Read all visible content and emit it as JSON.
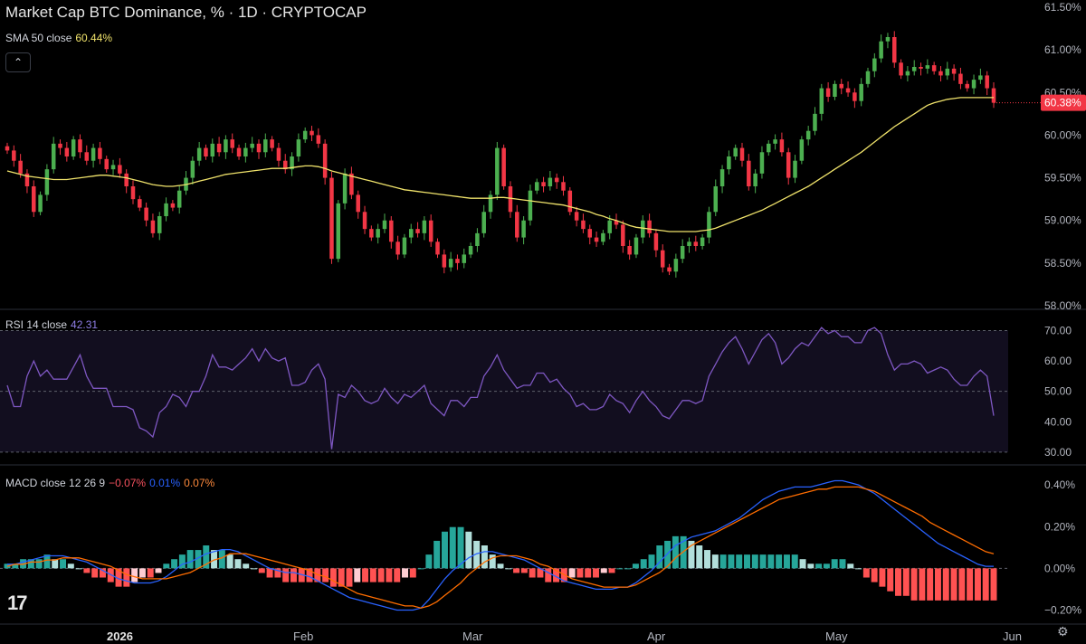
{
  "header": {
    "title": "Market Cap BTC Dominance, % · 1D · CRYPTOCAP",
    "sma_label": "SMA 50 close",
    "sma_value": "60.44%",
    "collapse_icon": "chevron-up-icon"
  },
  "rsi_header": {
    "label": "RSI 14 close",
    "value": "42.31"
  },
  "macd_header": {
    "label": "MACD close 12 26 9",
    "hist": "−0.07%",
    "macd": "0.01%",
    "signal": "0.07%"
  },
  "logo_text": "17",
  "settings_icon": "gear-icon",
  "colors": {
    "up": "#26a69a",
    "down": "#ef5350",
    "up_candle": "#4caf50",
    "down_candle": "#f23645",
    "sma": "#f0e36b",
    "rsi": "#7e57c2",
    "macd": "#2962ff",
    "signal": "#ff6d00",
    "hist_up_strong": "#26a69a",
    "hist_up_weak": "#b2dfdb",
    "hist_down_strong": "#ff5252",
    "hist_down_weak": "#ffcdd2"
  },
  "chart_data": [
    {
      "type": "candlestick",
      "title": "Market Cap BTC Dominance, % · 1D · CRYPTOCAP",
      "ylabel": "%",
      "ylim": [
        58.0,
        61.5
      ],
      "y_ticks": [
        "61.50%",
        "61.00%",
        "60.50%",
        "60.00%",
        "59.50%",
        "59.00%",
        "58.50%",
        "58.00%"
      ],
      "last_price_label": "60.38%",
      "x_ticks": [
        "2026",
        "Feb",
        "Mar",
        "Apr",
        "May",
        "Jun"
      ],
      "close": [
        59.82,
        59.7,
        59.55,
        59.4,
        59.1,
        59.3,
        59.6,
        59.9,
        59.85,
        59.75,
        59.95,
        59.8,
        59.7,
        59.85,
        59.72,
        59.6,
        59.65,
        59.55,
        59.4,
        59.25,
        59.15,
        59.0,
        58.85,
        59.05,
        59.2,
        59.15,
        59.35,
        59.5,
        59.7,
        59.85,
        59.75,
        59.9,
        59.8,
        59.95,
        59.85,
        59.75,
        59.85,
        59.9,
        59.8,
        59.95,
        59.85,
        59.7,
        59.6,
        59.75,
        59.95,
        60.05,
        60.0,
        59.9,
        59.5,
        58.55,
        59.2,
        59.55,
        59.3,
        59.1,
        58.9,
        58.8,
        58.9,
        59.0,
        58.75,
        58.6,
        58.8,
        58.9,
        58.85,
        59.0,
        58.75,
        58.6,
        58.45,
        58.55,
        58.5,
        58.6,
        58.7,
        58.85,
        59.1,
        59.3,
        59.85,
        59.4,
        59.1,
        58.8,
        59.0,
        59.35,
        59.45,
        59.4,
        59.5,
        59.45,
        59.35,
        59.1,
        59.0,
        58.9,
        58.8,
        58.75,
        58.85,
        59.0,
        58.95,
        58.7,
        58.6,
        58.8,
        59.0,
        58.85,
        58.65,
        58.45,
        58.4,
        58.55,
        58.7,
        58.75,
        58.7,
        58.8,
        59.1,
        59.4,
        59.6,
        59.75,
        59.85,
        59.7,
        59.4,
        59.55,
        59.8,
        59.9,
        59.95,
        59.8,
        59.5,
        59.7,
        59.95,
        60.05,
        60.25,
        60.55,
        60.45,
        60.6,
        60.55,
        60.5,
        60.4,
        60.6,
        60.75,
        60.9,
        61.1,
        61.15,
        60.85,
        60.7,
        60.75,
        60.8,
        60.78,
        60.82,
        60.75,
        60.7,
        60.78,
        60.72,
        60.6,
        60.55,
        60.65,
        60.7,
        60.55,
        60.38
      ],
      "sma50": [
        59.58,
        59.56,
        59.54,
        59.52,
        59.51,
        59.5,
        59.49,
        59.48,
        59.48,
        59.48,
        59.49,
        59.5,
        59.51,
        59.52,
        59.53,
        59.53,
        59.52,
        59.51,
        59.5,
        59.48,
        59.46,
        59.44,
        59.42,
        59.41,
        59.4,
        59.4,
        59.41,
        59.42,
        59.44,
        59.46,
        59.48,
        59.5,
        59.52,
        59.54,
        59.55,
        59.56,
        59.57,
        59.58,
        59.59,
        59.6,
        59.61,
        59.61,
        59.61,
        59.62,
        59.63,
        59.64,
        59.64,
        59.63,
        59.61,
        59.58,
        59.56,
        59.54,
        59.52,
        59.5,
        59.48,
        59.46,
        59.44,
        59.42,
        59.4,
        59.38,
        59.36,
        59.35,
        59.34,
        59.33,
        59.32,
        59.31,
        59.3,
        59.29,
        59.28,
        59.27,
        59.26,
        59.26,
        59.26,
        59.26,
        59.27,
        59.27,
        59.26,
        59.25,
        59.24,
        59.23,
        59.22,
        59.21,
        59.2,
        59.19,
        59.18,
        59.16,
        59.14,
        59.12,
        59.1,
        59.07,
        59.05,
        59.02,
        59.0,
        58.97,
        58.94,
        58.92,
        58.91,
        58.9,
        58.89,
        58.88,
        58.87,
        58.87,
        58.87,
        58.87,
        58.87,
        58.88,
        58.89,
        58.91,
        58.94,
        58.97,
        59.0,
        59.03,
        59.06,
        59.09,
        59.12,
        59.16,
        59.2,
        59.24,
        59.28,
        59.32,
        59.36,
        59.4,
        59.45,
        59.5,
        59.55,
        59.6,
        59.65,
        59.7,
        59.75,
        59.8,
        59.86,
        59.92,
        59.98,
        60.04,
        60.1,
        60.15,
        60.2,
        60.25,
        60.3,
        60.35,
        60.38,
        60.4,
        60.42,
        60.43,
        60.44,
        60.44,
        60.44,
        60.44,
        60.44,
        60.44
      ]
    },
    {
      "type": "line",
      "title": "RSI 14 close",
      "ylim": [
        27,
        74
      ],
      "y_ticks": [
        "70.00",
        "60.00",
        "50.00",
        "40.00",
        "30.00"
      ],
      "bands": [
        30,
        50,
        70
      ],
      "values": [
        52,
        45,
        45,
        55,
        60,
        55,
        57,
        54,
        54,
        54,
        58,
        62,
        55,
        51,
        51,
        51,
        45,
        45,
        45,
        44,
        38,
        37,
        35,
        43,
        45,
        49,
        48,
        45,
        50,
        50,
        55,
        62,
        58,
        58,
        57,
        59,
        61,
        64,
        60,
        64,
        61,
        60,
        61,
        52,
        52,
        53,
        57,
        59,
        54,
        31,
        49,
        48,
        52,
        50,
        47,
        46,
        47,
        51,
        48,
        46,
        49,
        48,
        50,
        52,
        46,
        44,
        42,
        47,
        47,
        45,
        48,
        48,
        55,
        58,
        62,
        57,
        54,
        51,
        52,
        52,
        56,
        56,
        53,
        54,
        51,
        49,
        45,
        46,
        44,
        44,
        45,
        49,
        47,
        46,
        43,
        47,
        50,
        47,
        45,
        42,
        41,
        44,
        47,
        47,
        46,
        47,
        55,
        59,
        63,
        66,
        68,
        64,
        59,
        63,
        67,
        69,
        66,
        59,
        61,
        64,
        66,
        65,
        68,
        71,
        69,
        70,
        68,
        68,
        66,
        66,
        70,
        71,
        69,
        62,
        57,
        59,
        59,
        60,
        59,
        56,
        57,
        58,
        57,
        54,
        52,
        52,
        55,
        57,
        55,
        42
      ]
    },
    {
      "type": "bar+line",
      "title": "MACD close 12 26 9",
      "ylim": [
        -0.25,
        0.47
      ],
      "y_ticks": [
        "0.40%",
        "0.20%",
        "0.00%",
        "−0.20%"
      ],
      "macd": [
        0.02,
        0.02,
        0.03,
        0.04,
        0.05,
        0.06,
        0.06,
        0.06,
        0.05,
        0.04,
        0.03,
        0.01,
        -0.01,
        -0.03,
        -0.05,
        -0.06,
        -0.07,
        -0.07,
        -0.07,
        -0.06,
        -0.04,
        -0.01,
        0.02,
        0.03,
        0.05,
        0.07,
        0.08,
        0.09,
        0.09,
        0.08,
        0.06,
        0.04,
        0.02,
        0.0,
        -0.01,
        -0.02,
        -0.02,
        -0.03,
        -0.04,
        -0.06,
        -0.08,
        -0.1,
        -0.12,
        -0.14,
        -0.15,
        -0.16,
        -0.17,
        -0.18,
        -0.19,
        -0.2,
        -0.2,
        -0.2,
        -0.19,
        -0.15,
        -0.1,
        -0.05,
        -0.01,
        0.02,
        0.05,
        0.07,
        0.08,
        0.08,
        0.07,
        0.06,
        0.05,
        0.04,
        0.02,
        0.0,
        -0.02,
        -0.04,
        -0.06,
        -0.07,
        -0.08,
        -0.09,
        -0.1,
        -0.1,
        -0.1,
        -0.09,
        -0.09,
        -0.07,
        -0.04,
        -0.01,
        0.03,
        0.07,
        0.11,
        0.13,
        0.15,
        0.16,
        0.17,
        0.18,
        0.2,
        0.22,
        0.24,
        0.27,
        0.3,
        0.33,
        0.35,
        0.37,
        0.38,
        0.39,
        0.39,
        0.39,
        0.4,
        0.41,
        0.42,
        0.42,
        0.41,
        0.4,
        0.38,
        0.36,
        0.33,
        0.3,
        0.27,
        0.24,
        0.21,
        0.18,
        0.15,
        0.12,
        0.1,
        0.08,
        0.06,
        0.04,
        0.02,
        0.01,
        0.01
      ],
      "signal": [
        0.01,
        0.02,
        0.02,
        0.03,
        0.03,
        0.04,
        0.04,
        0.05,
        0.05,
        0.05,
        0.04,
        0.03,
        0.02,
        0.01,
        -0.01,
        -0.03,
        -0.04,
        -0.05,
        -0.05,
        -0.05,
        -0.05,
        -0.04,
        -0.03,
        -0.02,
        0.0,
        0.02,
        0.04,
        0.05,
        0.07,
        0.07,
        0.07,
        0.06,
        0.05,
        0.04,
        0.03,
        0.02,
        0.01,
        0.0,
        -0.01,
        -0.03,
        -0.04,
        -0.06,
        -0.08,
        -0.1,
        -0.12,
        -0.13,
        -0.14,
        -0.15,
        -0.16,
        -0.17,
        -0.18,
        -0.18,
        -0.19,
        -0.18,
        -0.16,
        -0.13,
        -0.1,
        -0.07,
        -0.03,
        0.0,
        0.03,
        0.05,
        0.06,
        0.06,
        0.06,
        0.05,
        0.04,
        0.02,
        0.01,
        -0.01,
        -0.03,
        -0.05,
        -0.06,
        -0.07,
        -0.08,
        -0.09,
        -0.09,
        -0.09,
        -0.09,
        -0.08,
        -0.06,
        -0.04,
        -0.02,
        0.01,
        0.05,
        0.08,
        0.11,
        0.13,
        0.15,
        0.17,
        0.19,
        0.21,
        0.23,
        0.25,
        0.27,
        0.29,
        0.31,
        0.33,
        0.34,
        0.35,
        0.36,
        0.37,
        0.38,
        0.38,
        0.39,
        0.39,
        0.39,
        0.39,
        0.38,
        0.37,
        0.35,
        0.33,
        0.31,
        0.29,
        0.27,
        0.25,
        0.22,
        0.2,
        0.18,
        0.16,
        0.14,
        0.12,
        0.1,
        0.08,
        0.07
      ],
      "histogram": [
        0.01,
        0.01,
        0.02,
        0.02,
        0.02,
        0.03,
        0.02,
        0.02,
        0.01,
        0.0,
        -0.01,
        -0.02,
        -0.02,
        -0.03,
        -0.04,
        -0.04,
        -0.03,
        -0.02,
        -0.02,
        -0.01,
        0.01,
        0.02,
        0.03,
        0.04,
        0.04,
        0.05,
        0.04,
        0.04,
        0.03,
        0.02,
        0.01,
        0.0,
        -0.01,
        -0.02,
        -0.02,
        -0.03,
        -0.03,
        -0.03,
        -0.03,
        -0.03,
        -0.03,
        -0.04,
        -0.04,
        -0.04,
        -0.03,
        -0.03,
        -0.03,
        -0.03,
        -0.03,
        -0.03,
        -0.02,
        -0.02,
        0.0,
        0.03,
        0.06,
        0.08,
        0.09,
        0.09,
        0.08,
        0.06,
        0.05,
        0.03,
        0.01,
        0.0,
        -0.01,
        -0.01,
        -0.02,
        -0.02,
        -0.03,
        -0.03,
        -0.03,
        -0.02,
        -0.02,
        -0.02,
        -0.02,
        -0.01,
        -0.01,
        0.0,
        0.0,
        0.01,
        0.02,
        0.03,
        0.05,
        0.06,
        0.07,
        0.07,
        0.06,
        0.05,
        0.04,
        0.03,
        0.03,
        0.03,
        0.03,
        0.03,
        0.03,
        0.03,
        0.03,
        0.03,
        0.03,
        0.03,
        0.02,
        0.01,
        0.01,
        0.01,
        0.02,
        0.02,
        0.01,
        0.0,
        -0.02,
        -0.03,
        -0.04,
        -0.05,
        -0.06,
        -0.06,
        -0.07,
        -0.07,
        -0.07,
        -0.07,
        -0.07,
        -0.07,
        -0.07,
        -0.07,
        -0.07,
        -0.07,
        -0.07
      ]
    }
  ]
}
